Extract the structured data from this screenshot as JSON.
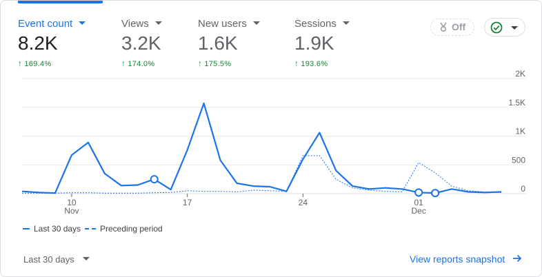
{
  "metrics": [
    {
      "label": "Event count",
      "value": "8.2K",
      "change": "169.4%",
      "active": true
    },
    {
      "label": "Views",
      "value": "3.2K",
      "change": "174.0%",
      "active": false
    },
    {
      "label": "New users",
      "value": "1.6K",
      "change": "175.5%",
      "active": false
    },
    {
      "label": "Sessions",
      "value": "1.9K",
      "change": "193.6%",
      "active": false
    }
  ],
  "anomaly_toggle": {
    "label": "Off",
    "icon": "anomaly-icon"
  },
  "compare_button": {
    "icon": "check-circle-icon"
  },
  "legend": {
    "current": "Last 30 days",
    "previous": "Preceding period"
  },
  "footer": {
    "date_range": "Last 30 days",
    "link": "View reports snapshot"
  },
  "colors": {
    "accent": "#1a73e8",
    "positive": "#188038",
    "border": "#dadce0",
    "check": "#188038"
  },
  "chart_data": {
    "type": "line",
    "ylim": [
      0,
      2000
    ],
    "y_ticks": [
      "2K",
      "1.5K",
      "1K",
      "500",
      "0"
    ],
    "y_tick_values": [
      2000,
      1500,
      1000,
      500,
      0
    ],
    "x_ticks": [
      {
        "day": 3,
        "label": "10",
        "sublabel": "Nov"
      },
      {
        "day": 10,
        "label": "17",
        "sublabel": ""
      },
      {
        "day": 17,
        "label": "24",
        "sublabel": ""
      },
      {
        "day": 24,
        "label": "01",
        "sublabel": "Dec"
      }
    ],
    "series": [
      {
        "name": "Last 30 days",
        "style": "solid",
        "values": [
          40,
          20,
          10,
          670,
          890,
          350,
          140,
          150,
          250,
          70,
          760,
          1570,
          580,
          180,
          130,
          120,
          40,
          600,
          1060,
          400,
          130,
          80,
          100,
          80,
          20,
          10,
          80,
          30,
          20,
          30
        ],
        "markers": [
          8,
          24,
          25
        ]
      },
      {
        "name": "Preceding period",
        "style": "dashed",
        "values": [
          10,
          10,
          10,
          15,
          15,
          10,
          10,
          10,
          15,
          20,
          50,
          40,
          40,
          30,
          60,
          50,
          40,
          660,
          660,
          250,
          100,
          60,
          40,
          30,
          540,
          360,
          130,
          50,
          30,
          20
        ]
      }
    ]
  }
}
